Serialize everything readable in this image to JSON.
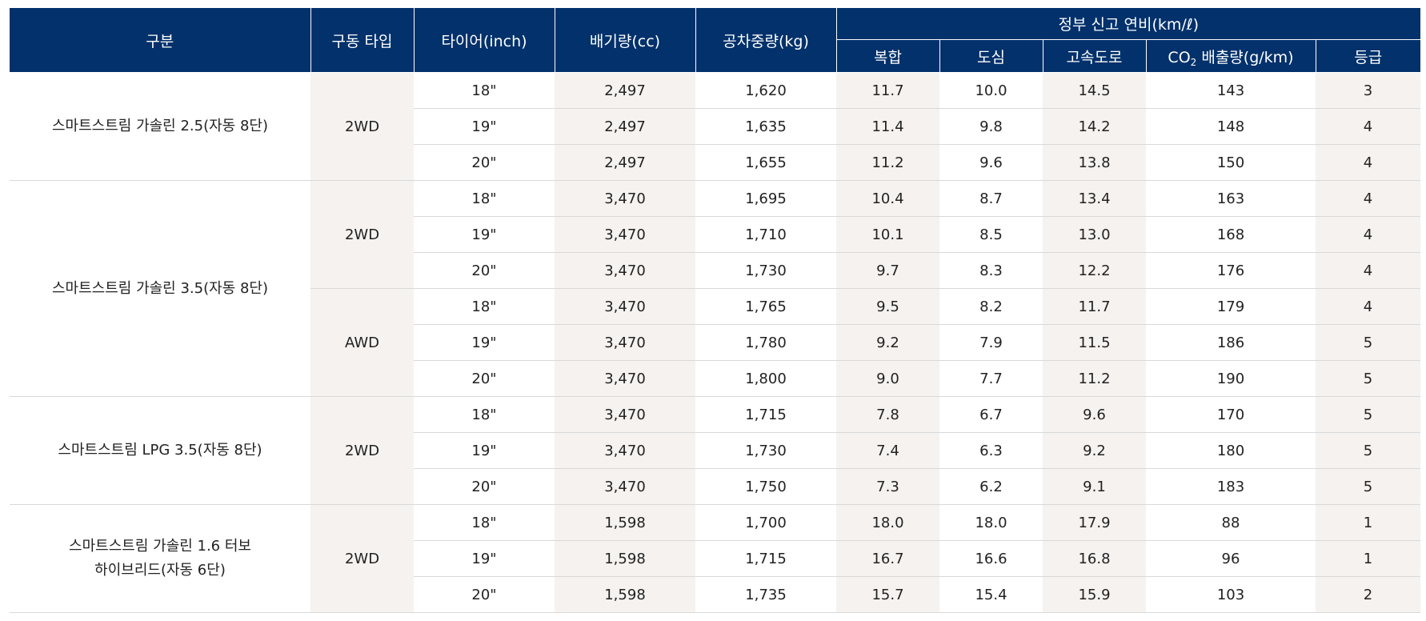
{
  "header": {
    "category": "구분",
    "drive_type": "구동 타입",
    "tire": "타이어(inch)",
    "displacement": "배기량(cc)",
    "curb_weight": "공차중량(kg)",
    "fuel_economy_group": "정부 신고 연비(km/ℓ)",
    "combined": "복합",
    "city": "도심",
    "highway": "고속도로",
    "co2_prefix": "CO",
    "co2_sub": "2",
    "co2_suffix": " 배출량(g/km)",
    "grade": "등급"
  },
  "groups": [
    {
      "name": "스마트스트림 가솔린 2.5(자동 8단)",
      "drives": [
        {
          "type": "2WD",
          "rows": [
            {
              "tire": "18\"",
              "displacement": "2,497",
              "weight": "1,620",
              "combined": "11.7",
              "city": "10.0",
              "highway": "14.5",
              "co2": "143",
              "grade": "3"
            },
            {
              "tire": "19\"",
              "displacement": "2,497",
              "weight": "1,635",
              "combined": "11.4",
              "city": "9.8",
              "highway": "14.2",
              "co2": "148",
              "grade": "4"
            },
            {
              "tire": "20\"",
              "displacement": "2,497",
              "weight": "1,655",
              "combined": "11.2",
              "city": "9.6",
              "highway": "13.8",
              "co2": "150",
              "grade": "4"
            }
          ]
        }
      ]
    },
    {
      "name": "스마트스트림 가솔린 3.5(자동 8단)",
      "drives": [
        {
          "type": "2WD",
          "rows": [
            {
              "tire": "18\"",
              "displacement": "3,470",
              "weight": "1,695",
              "combined": "10.4",
              "city": "8.7",
              "highway": "13.4",
              "co2": "163",
              "grade": "4"
            },
            {
              "tire": "19\"",
              "displacement": "3,470",
              "weight": "1,710",
              "combined": "10.1",
              "city": "8.5",
              "highway": "13.0",
              "co2": "168",
              "grade": "4"
            },
            {
              "tire": "20\"",
              "displacement": "3,470",
              "weight": "1,730",
              "combined": "9.7",
              "city": "8.3",
              "highway": "12.2",
              "co2": "176",
              "grade": "4"
            }
          ]
        },
        {
          "type": "AWD",
          "rows": [
            {
              "tire": "18\"",
              "displacement": "3,470",
              "weight": "1,765",
              "combined": "9.5",
              "city": "8.2",
              "highway": "11.7",
              "co2": "179",
              "grade": "4"
            },
            {
              "tire": "19\"",
              "displacement": "3,470",
              "weight": "1,780",
              "combined": "9.2",
              "city": "7.9",
              "highway": "11.5",
              "co2": "186",
              "grade": "5"
            },
            {
              "tire": "20\"",
              "displacement": "3,470",
              "weight": "1,800",
              "combined": "9.0",
              "city": "7.7",
              "highway": "11.2",
              "co2": "190",
              "grade": "5"
            }
          ]
        }
      ]
    },
    {
      "name": "스마트스트림 LPG 3.5(자동 8단)",
      "drives": [
        {
          "type": "2WD",
          "rows": [
            {
              "tire": "18\"",
              "displacement": "3,470",
              "weight": "1,715",
              "combined": "7.8",
              "city": "6.7",
              "highway": "9.6",
              "co2": "170",
              "grade": "5"
            },
            {
              "tire": "19\"",
              "displacement": "3,470",
              "weight": "1,730",
              "combined": "7.4",
              "city": "6.3",
              "highway": "9.2",
              "co2": "180",
              "grade": "5"
            },
            {
              "tire": "20\"",
              "displacement": "3,470",
              "weight": "1,750",
              "combined": "7.3",
              "city": "6.2",
              "highway": "9.1",
              "co2": "183",
              "grade": "5"
            }
          ]
        }
      ]
    },
    {
      "name": "스마트스트림 가솔린 1.6 터보\n하이브리드(자동 6단)",
      "name_line1": "스마트스트림 가솔린 1.6 터보",
      "name_line2": "하이브리드(자동 6단)",
      "drives": [
        {
          "type": "2WD",
          "rows": [
            {
              "tire": "18\"",
              "displacement": "1,598",
              "weight": "1,700",
              "combined": "18.0",
              "city": "18.0",
              "highway": "17.9",
              "co2": "88",
              "grade": "1"
            },
            {
              "tire": "19\"",
              "displacement": "1,598",
              "weight": "1,715",
              "combined": "16.7",
              "city": "16.6",
              "highway": "16.8",
              "co2": "96",
              "grade": "1"
            },
            {
              "tire": "20\"",
              "displacement": "1,598",
              "weight": "1,735",
              "combined": "15.7",
              "city": "15.4",
              "highway": "15.9",
              "co2": "103",
              "grade": "2"
            }
          ]
        }
      ]
    }
  ]
}
